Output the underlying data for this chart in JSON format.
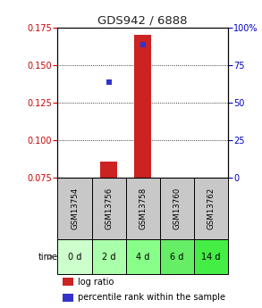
{
  "title": "GDS942 / 6888",
  "samples": [
    "GSM13754",
    "GSM13756",
    "GSM13758",
    "GSM13760",
    "GSM13762"
  ],
  "time_labels": [
    "0 d",
    "2 d",
    "4 d",
    "6 d",
    "14 d"
  ],
  "log_ratio": [
    null,
    0.086,
    0.17,
    null,
    null
  ],
  "percentile_rank_pct": [
    null,
    63.6,
    88.5,
    null,
    null
  ],
  "ylim_left": [
    0.075,
    0.175
  ],
  "ylim_right": [
    0,
    100
  ],
  "yticks_left": [
    0.075,
    0.1,
    0.125,
    0.15,
    0.175
  ],
  "yticks_right": [
    0,
    25,
    50,
    75,
    100
  ],
  "bar_color": "#cc2222",
  "dot_color": "#3333cc",
  "sample_box_color": "#c8c8c8",
  "time_box_colors": [
    "#ccffcc",
    "#aaffaa",
    "#88ff88",
    "#66ee66",
    "#44ee44"
  ],
  "left_axis_color": "#cc0000",
  "right_axis_color": "#0000cc",
  "title_color": "#222222",
  "legend_bar_color": "#cc2222",
  "legend_dot_color": "#3333cc"
}
